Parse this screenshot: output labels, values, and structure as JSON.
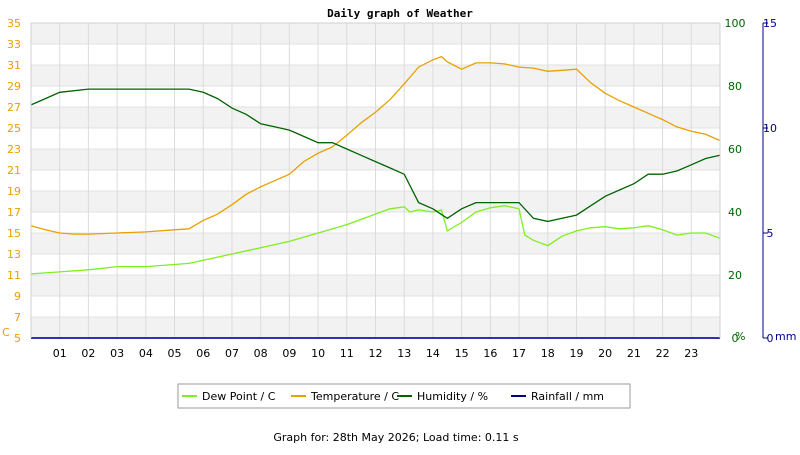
{
  "chart_data": {
    "type": "line",
    "title": "Daily graph of Weather",
    "footer": "Graph for: 28th May 2026; Load time: 0.11 s",
    "x_ticks": [
      "01",
      "02",
      "03",
      "04",
      "05",
      "06",
      "07",
      "08",
      "09",
      "10",
      "11",
      "12",
      "13",
      "14",
      "15",
      "16",
      "17",
      "18",
      "19",
      "20",
      "21",
      "22",
      "23"
    ],
    "xlim": [
      0,
      24
    ],
    "axes": {
      "temp": {
        "unit": "C",
        "min": 5,
        "max": 35,
        "ticks": [
          "5",
          "7",
          "9",
          "11",
          "13",
          "15",
          "17",
          "19",
          "21",
          "23",
          "25",
          "27",
          "29",
          "31",
          "33",
          "35"
        ],
        "color": "#e8a000"
      },
      "humidity": {
        "unit": "%",
        "min": 0,
        "max": 100,
        "ticks": [
          "0",
          "20",
          "40",
          "60",
          "80",
          "100"
        ],
        "color": "#006400"
      },
      "rain": {
        "unit": "mm",
        "min": 0,
        "max": 15,
        "ticks": [
          "0",
          "5",
          "10",
          "15"
        ],
        "color": "#00008b"
      }
    },
    "grid": true,
    "legend_position": "bottom",
    "series": [
      {
        "name": "Dew Point / C",
        "axis": "temp",
        "color": "#80ee20",
        "x": [
          0,
          1,
          2,
          3,
          4,
          5,
          5.5,
          6,
          7,
          8,
          9,
          10,
          11,
          12,
          12.5,
          13,
          13.2,
          13.5,
          14,
          14.3,
          14.5,
          15,
          15.5,
          16,
          16.5,
          17,
          17.2,
          17.5,
          18,
          18.5,
          19,
          19.5,
          20,
          20.5,
          21,
          21.5,
          22,
          22.5,
          23,
          23.5,
          24
        ],
        "y": [
          11.1,
          11.3,
          11.5,
          11.8,
          11.8,
          12.0,
          12.1,
          12.4,
          13.0,
          13.6,
          14.2,
          15.0,
          15.8,
          16.8,
          17.3,
          17.5,
          17.0,
          17.2,
          17.0,
          17.2,
          15.2,
          16.0,
          17.0,
          17.4,
          17.6,
          17.3,
          14.8,
          14.3,
          13.8,
          14.7,
          15.2,
          15.5,
          15.6,
          15.4,
          15.5,
          15.7,
          15.3,
          14.8,
          15.0,
          15.0,
          14.5
        ]
      },
      {
        "name": "Temperature / C",
        "axis": "temp",
        "color": "#e8a000",
        "x": [
          0,
          0.5,
          1,
          1.5,
          2,
          3,
          4,
          5,
          5.5,
          6,
          6.5,
          7,
          7.5,
          8,
          9,
          9.5,
          10,
          10.5,
          11,
          11.5,
          12,
          12.5,
          13,
          13.5,
          14,
          14.3,
          14.5,
          15,
          15.5,
          16,
          16.5,
          17,
          17.5,
          18,
          18.5,
          19,
          19.5,
          20,
          20.5,
          21,
          21.5,
          22,
          22.5,
          23,
          23.5,
          24
        ],
        "y": [
          15.7,
          15.3,
          15.0,
          14.9,
          14.9,
          15.0,
          15.1,
          15.3,
          15.4,
          16.2,
          16.8,
          17.7,
          18.7,
          19.4,
          20.6,
          21.8,
          22.6,
          23.2,
          24.3,
          25.5,
          26.5,
          27.7,
          29.2,
          30.8,
          31.5,
          31.8,
          31.3,
          30.6,
          31.2,
          31.2,
          31.1,
          30.8,
          30.7,
          30.4,
          30.5,
          30.6,
          29.3,
          28.3,
          27.6,
          27.0,
          26.4,
          25.8,
          25.1,
          24.7,
          24.4,
          23.8
        ]
      },
      {
        "name": "Humidity / %",
        "axis": "humidity",
        "color": "#006400",
        "x": [
          0,
          0.5,
          1,
          2,
          3,
          4,
          5,
          5.5,
          6,
          6.5,
          7,
          7.5,
          8,
          8.5,
          9,
          9.5,
          10,
          10.5,
          11,
          11.5,
          12,
          12.5,
          13,
          13.5,
          14,
          14.5,
          15,
          15.5,
          16,
          16.5,
          17,
          17.5,
          18,
          18.5,
          19,
          19.5,
          20,
          20.5,
          21,
          21.5,
          22,
          22.5,
          23,
          23.5,
          24
        ],
        "y": [
          74,
          76,
          78,
          79,
          79,
          79,
          79,
          79,
          78,
          76,
          73,
          71,
          68,
          67,
          66,
          64,
          62,
          62,
          60,
          58,
          56,
          54,
          52,
          43,
          41,
          38,
          41,
          43,
          43,
          43,
          43,
          38,
          37,
          38,
          39,
          42,
          45,
          47,
          49,
          52,
          52,
          53,
          55,
          57,
          58
        ]
      },
      {
        "name": "Rainfall / mm",
        "axis": "rain",
        "color": "#00008b",
        "x": [
          0,
          24
        ],
        "y": [
          0,
          0
        ]
      }
    ]
  }
}
